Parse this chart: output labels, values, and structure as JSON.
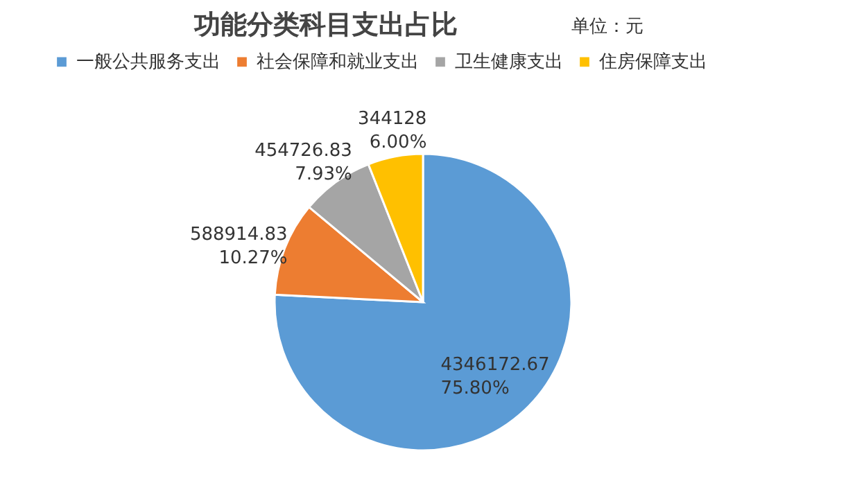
{
  "chart_data": {
    "type": "pie",
    "title": "功能分类科目支出占比",
    "subtitle": "单位：元",
    "categories": [
      "一般公共服务支出",
      "社会保障和就业支出",
      "卫生健康支出",
      "住房保障支出"
    ],
    "values": [
      4346172.67,
      588914.83,
      454726.83,
      344128
    ],
    "colors": [
      "#5b9bd5",
      "#ed7d31",
      "#a5a5a5",
      "#ffc000"
    ],
    "value_labels": [
      "4346172.67\n75.80%",
      "588914.83\n10.27%",
      "454726.83\n7.93%",
      "344128\n6.00%"
    ],
    "legend": "top"
  }
}
